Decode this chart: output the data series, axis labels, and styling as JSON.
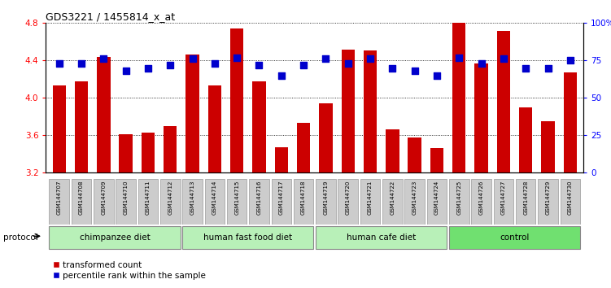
{
  "title": "GDS3221 / 1455814_x_at",
  "samples": [
    "GSM144707",
    "GSM144708",
    "GSM144709",
    "GSM144710",
    "GSM144711",
    "GSM144712",
    "GSM144713",
    "GSM144714",
    "GSM144715",
    "GSM144716",
    "GSM144717",
    "GSM144718",
    "GSM144719",
    "GSM144720",
    "GSM144721",
    "GSM144722",
    "GSM144723",
    "GSM144724",
    "GSM144725",
    "GSM144726",
    "GSM144727",
    "GSM144728",
    "GSM144729",
    "GSM144730"
  ],
  "bar_values": [
    4.13,
    4.18,
    4.44,
    3.61,
    3.63,
    3.7,
    4.46,
    4.13,
    4.74,
    4.18,
    3.47,
    3.73,
    3.94,
    4.52,
    4.51,
    3.66,
    3.58,
    3.46,
    4.8,
    4.37,
    4.72,
    3.9,
    3.75,
    4.27
  ],
  "percentile_values": [
    73,
    73,
    76,
    68,
    70,
    72,
    76,
    73,
    77,
    72,
    65,
    72,
    76,
    73,
    76,
    70,
    68,
    65,
    77,
    73,
    76,
    70,
    70,
    75
  ],
  "groups": [
    {
      "label": "chimpanzee diet",
      "start": 0,
      "end": 6,
      "color": "#b8f0b8"
    },
    {
      "label": "human fast food diet",
      "start": 6,
      "end": 12,
      "color": "#b8f0b8"
    },
    {
      "label": "human cafe diet",
      "start": 12,
      "end": 18,
      "color": "#b8f0b8"
    },
    {
      "label": "control",
      "start": 18,
      "end": 24,
      "color": "#70e070"
    }
  ],
  "ylim_left": [
    3.2,
    4.8
  ],
  "ylim_right": [
    0,
    100
  ],
  "yticks_left": [
    3.2,
    3.6,
    4.0,
    4.4,
    4.8
  ],
  "yticks_right": [
    0,
    25,
    50,
    75,
    100
  ],
  "bar_color": "#cc0000",
  "percentile_color": "#0000cc",
  "xticklabel_bg": "#cccccc",
  "legend_items": [
    "transformed count",
    "percentile rank within the sample"
  ],
  "protocol_label": "protocol"
}
